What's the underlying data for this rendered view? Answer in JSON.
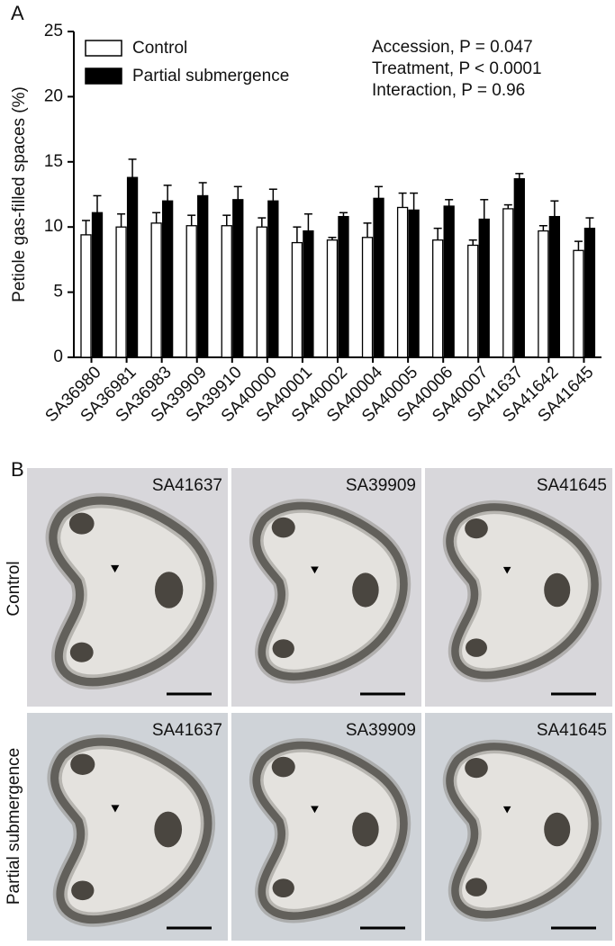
{
  "chart_data": {
    "type": "bar",
    "panel_label": "A",
    "ylabel": "Petiole gas-filled spaces (%)",
    "categories": [
      "SA36980",
      "SA36981",
      "SA36983",
      "SA39909",
      "SA39910",
      "SA40000",
      "SA40001",
      "SA40002",
      "SA40004",
      "SA40005",
      "SA40006",
      "SA40007",
      "SA41637",
      "SA41642",
      "SA41645"
    ],
    "series": [
      {
        "name": "Control",
        "color": "#ffffff",
        "values": [
          9.4,
          10.0,
          10.3,
          10.1,
          10.1,
          10.0,
          8.8,
          9.0,
          9.2,
          11.5,
          9.0,
          8.6,
          11.4,
          9.7,
          8.2
        ],
        "errors": [
          1.1,
          1.0,
          0.8,
          0.8,
          0.8,
          0.7,
          1.2,
          0.2,
          1.1,
          1.1,
          0.9,
          0.4,
          0.3,
          0.4,
          0.7
        ]
      },
      {
        "name": "Partial submergence",
        "color": "#000000",
        "values": [
          11.1,
          13.8,
          12.0,
          12.4,
          12.1,
          12.0,
          9.7,
          10.8,
          12.2,
          11.3,
          11.6,
          10.6,
          13.7,
          10.8,
          9.9
        ],
        "errors": [
          1.3,
          1.4,
          1.2,
          1.0,
          1.0,
          0.9,
          1.3,
          0.3,
          0.9,
          1.3,
          0.5,
          1.5,
          0.4,
          1.2,
          0.8
        ]
      }
    ],
    "ylim": [
      0,
      25
    ],
    "yticks": [
      0,
      5,
      10,
      15,
      20,
      25
    ],
    "grid": false,
    "legend": "top-left",
    "annotations": [
      "Accession, P = 0.047",
      "Treatment, P < 0.0001",
      "Interaction, P = 0.96"
    ]
  },
  "panel_b": {
    "label": "B",
    "rows": [
      {
        "label": "Control",
        "images": [
          "SA41637",
          "SA39909",
          "SA41645"
        ]
      },
      {
        "label": "Partial submergence",
        "images": [
          "SA41637",
          "SA39909",
          "SA41645"
        ]
      }
    ]
  }
}
